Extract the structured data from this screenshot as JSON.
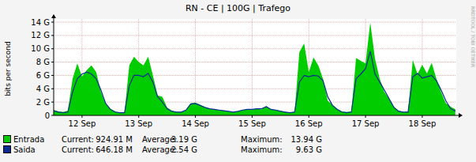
{
  "chart_data": {
    "type": "area",
    "title": "RN - CE | 100G | Trafego",
    "ylabel": "bits per second",
    "watermark": "RRDTOOL / TOBI OETIKER",
    "x": [
      0,
      2,
      4,
      6,
      8,
      10,
      12,
      14,
      16,
      18,
      20,
      22,
      24,
      26,
      28,
      30,
      32,
      34,
      36,
      38,
      40,
      42,
      44,
      46,
      48,
      50,
      52,
      54,
      56,
      58,
      60,
      62,
      64,
      66,
      68,
      70,
      72,
      74,
      76,
      78,
      80,
      82,
      84,
      86,
      88,
      90,
      92,
      94,
      96,
      98,
      100,
      102,
      104,
      106,
      108,
      110,
      112,
      114,
      116,
      118,
      120,
      122,
      124,
      126,
      128,
      130,
      132,
      134,
      136,
      138,
      140,
      142,
      144,
      146,
      148,
      150,
      152,
      154,
      156,
      158,
      160,
      162,
      164,
      166,
      168,
      170
    ],
    "xlim": [
      0,
      170.4
    ],
    "xticks": [
      {
        "value": 12,
        "label": "12 Sep"
      },
      {
        "value": 36,
        "label": "13 Sep"
      },
      {
        "value": 60,
        "label": "14 Sep"
      },
      {
        "value": 84,
        "label": "15 Sep"
      },
      {
        "value": 108,
        "label": "16 Sep"
      },
      {
        "value": 132,
        "label": "17 Sep"
      },
      {
        "value": 156,
        "label": "18 Sep"
      }
    ],
    "ylim": [
      0,
      14
    ],
    "yticks": [
      0,
      {
        "value": 2,
        "label": "2 G"
      },
      {
        "value": 4,
        "label": "4 G"
      },
      {
        "value": 6,
        "label": "6 G"
      },
      {
        "value": 8,
        "label": "8 G"
      },
      {
        "value": 10,
        "label": "10 G"
      },
      {
        "value": 12,
        "label": "12 G"
      },
      {
        "value": 14,
        "label": "14 G"
      }
    ],
    "grid": true,
    "legend_stats": {
      "labels": [
        "Current:",
        "Average:",
        "Maximum:"
      ]
    },
    "series": [
      {
        "name": "Entrada",
        "color": "#00cc00",
        "type": "area",
        "values": [
          0.8,
          0.6,
          0.5,
          0.7,
          5.5,
          7.8,
          5.8,
          6.8,
          7.5,
          6.5,
          3.5,
          1.8,
          1.0,
          0.6,
          0.4,
          0.5,
          7.5,
          8.8,
          8.0,
          7.5,
          8.8,
          6.0,
          3.0,
          2.8,
          1.2,
          0.7,
          0.5,
          0.5,
          0.8,
          1.8,
          1.9,
          1.6,
          1.2,
          1.0,
          0.9,
          0.8,
          0.7,
          0.6,
          0.5,
          0.6,
          0.8,
          0.9,
          0.9,
          1.0,
          0.9,
          1.4,
          0.9,
          0.8,
          0.7,
          0.5,
          0.4,
          0.6,
          9.5,
          10.8,
          6.5,
          8.7,
          7.5,
          5.5,
          2.2,
          1.6,
          1.0,
          0.6,
          0.5,
          0.6,
          8.6,
          8.2,
          7.8,
          13.94,
          8.5,
          5.5,
          3.5,
          2.5,
          1.3,
          0.7,
          0.5,
          0.6,
          8.3,
          6.2,
          7.6,
          6.3,
          7.9,
          5.5,
          3.5,
          1.8,
          1.3,
          0.92
        ],
        "stats": [
          {
            "value": 0.92491,
            "label": "924.91 M"
          },
          {
            "value": 3.19,
            "label": "3.19 G"
          },
          {
            "value": 13.94,
            "label": "13.94 G"
          }
        ]
      },
      {
        "name": "Saida",
        "color": "#0a2a96",
        "type": "line",
        "values": [
          0.7,
          0.5,
          0.4,
          0.5,
          3.5,
          5.5,
          6.2,
          6.5,
          6.2,
          5.5,
          3.8,
          1.8,
          0.9,
          0.5,
          0.4,
          0.4,
          4.5,
          6.0,
          6.0,
          5.8,
          6.3,
          5.0,
          2.8,
          2.0,
          1.0,
          0.6,
          0.5,
          0.5,
          0.8,
          1.7,
          1.8,
          1.5,
          1.2,
          1.0,
          0.9,
          0.8,
          0.7,
          0.6,
          0.5,
          0.6,
          0.8,
          0.9,
          0.9,
          1.0,
          1.0,
          1.3,
          0.9,
          0.8,
          0.6,
          0.5,
          0.4,
          0.5,
          5.0,
          6.0,
          5.8,
          6.0,
          5.9,
          5.2,
          2.8,
          1.5,
          0.9,
          0.5,
          0.4,
          0.5,
          5.5,
          6.2,
          7.0,
          9.63,
          6.2,
          5.0,
          3.8,
          2.5,
          1.2,
          0.6,
          0.5,
          0.5,
          5.8,
          6.3,
          5.6,
          5.8,
          6.0,
          5.2,
          3.8,
          2.2,
          1.0,
          0.65
        ],
        "stats": [
          {
            "value": 0.64618,
            "label": "646.18 M"
          },
          {
            "value": 2.54,
            "label": "2.54 G"
          },
          {
            "value": 9.63,
            "label": "9.63 G"
          }
        ]
      }
    ]
  }
}
